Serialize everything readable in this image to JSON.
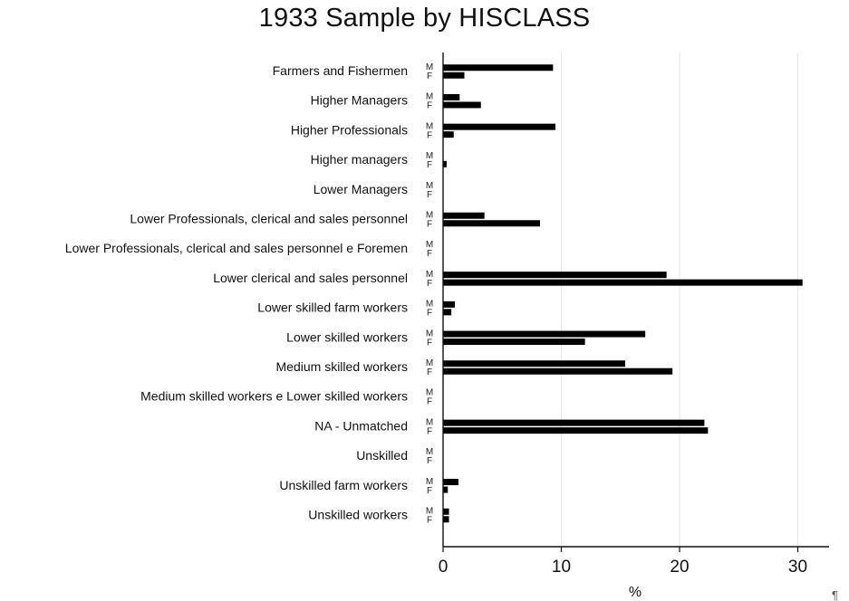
{
  "chart_data": {
    "type": "bar",
    "orientation": "horizontal",
    "title": "1933 Sample by HISCLASS",
    "xlabel": "%",
    "xlim": [
      0,
      32
    ],
    "xticks": [
      0,
      10,
      20,
      30
    ],
    "grid": true,
    "sub_labels": [
      "M",
      "F"
    ],
    "corner_mark": "¶",
    "categories": [
      "Farmers and Fishermen",
      "Higher Managers",
      "Higher Professionals",
      "Higher managers",
      "Lower Managers",
      "Lower Professionals, clerical and sales personnel",
      "Lower Professionals, clerical and sales personnel e Foremen",
      "Lower clerical and sales personnel",
      "Lower skilled farm workers",
      "Lower skilled workers",
      "Medium skilled workers",
      "Medium skilled workers e Lower skilled workers",
      "NA - Unmatched",
      "Unskilled",
      "Unskilled farm workers",
      "Unskilled workers"
    ],
    "series": [
      {
        "name": "M",
        "values": [
          9.3,
          1.4,
          9.5,
          0.0,
          0.0,
          3.5,
          0.0,
          18.9,
          1.0,
          17.1,
          15.4,
          0.0,
          22.1,
          0.0,
          1.3,
          0.5
        ]
      },
      {
        "name": "F",
        "values": [
          1.8,
          3.2,
          0.9,
          0.3,
          0.0,
          8.2,
          0.0,
          30.4,
          0.7,
          12.0,
          19.4,
          0.0,
          22.4,
          0.0,
          0.4,
          0.5
        ]
      }
    ],
    "bar_color": "#000000",
    "grid_color": "#e6e6e6"
  }
}
